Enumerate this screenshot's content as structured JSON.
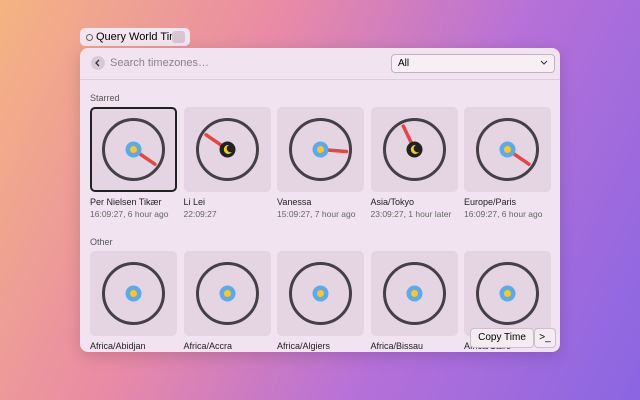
{
  "window_tag": {
    "title": "Query World Time"
  },
  "search": {
    "placeholder": "Search timezones…",
    "filter": "All"
  },
  "sections": [
    {
      "title": "Starred",
      "items": [
        {
          "name": "Per Nielsen Tikær",
          "subtitle": "16:09:27, 6 hour ago"
        },
        {
          "name": "Li Lei",
          "subtitle": "22:09:27"
        },
        {
          "name": "Vanessa",
          "subtitle": "15:09:27, 7 hour ago"
        },
        {
          "name": "Asia/Tokyo",
          "subtitle": "23:09:27, 1 hour later"
        },
        {
          "name": "Europe/Paris",
          "subtitle": "16:09:27, 6 hour ago"
        }
      ]
    },
    {
      "title": "Other",
      "items": [
        {
          "name": "Africa/Abidjan"
        },
        {
          "name": "Africa/Accra"
        },
        {
          "name": "Africa/Algiers"
        },
        {
          "name": "Africa/Bissau"
        },
        {
          "name": "Africa/Cairo"
        }
      ]
    }
  ],
  "actions": {
    "primary": "Copy Time",
    "shortcut": ">_"
  }
}
